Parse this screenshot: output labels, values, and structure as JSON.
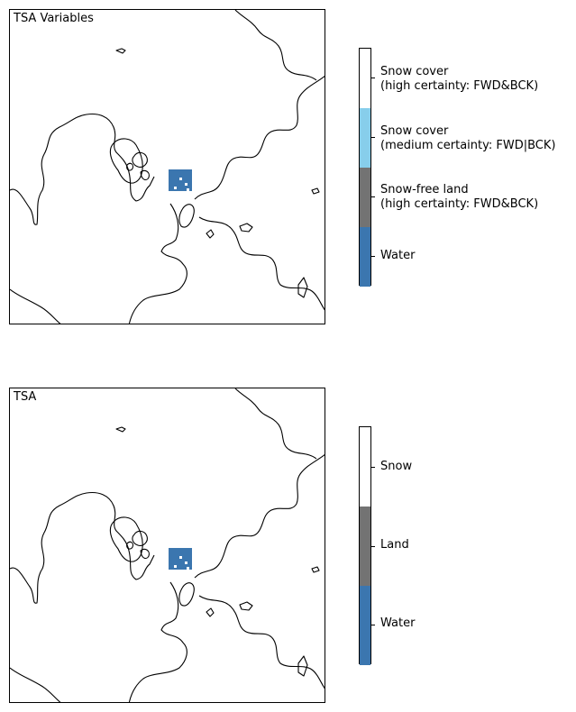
{
  "panels": [
    {
      "title": "TSA Variables",
      "legend": {
        "entries": [
          {
            "lines": [
              "Snow cover",
              "(high certainty: FWD&BCK)"
            ],
            "color": "#ffffff"
          },
          {
            "lines": [
              "Snow cover",
              "(medium certainty: FWD|BCK)"
            ],
            "color": "#87ceeb"
          },
          {
            "lines": [
              "Snow-free land",
              "(high certainty: FWD&BCK)"
            ],
            "color": "#737373"
          },
          {
            "lines": [
              "Water"
            ],
            "color": "#3b76af"
          }
        ]
      }
    },
    {
      "title": "TSA",
      "legend": {
        "entries": [
          {
            "lines": [
              "Snow"
            ],
            "color": "#ffffff"
          },
          {
            "lines": [
              "Land"
            ],
            "color": "#737373"
          },
          {
            "lines": [
              "Water"
            ],
            "color": "#3b76af"
          }
        ]
      }
    }
  ],
  "colors": {
    "water": "#3b76af",
    "land": "#737373",
    "snow": "#ffffff",
    "coastline": "#000000"
  }
}
